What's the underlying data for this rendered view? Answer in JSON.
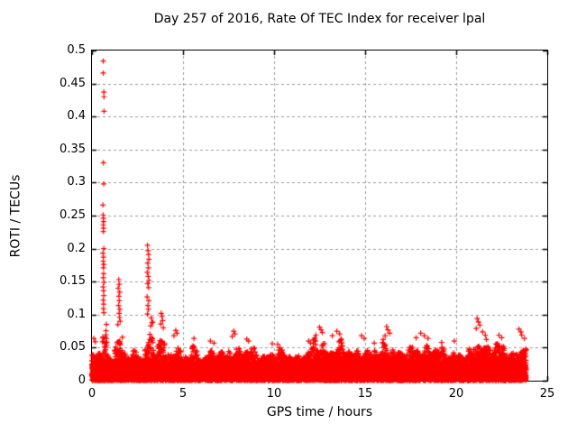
{
  "chart_data": {
    "type": "scatter",
    "title": "Day 257 of 2016, Rate Of TEC Index for receiver lpal",
    "xlabel": "GPS time / hours",
    "ylabel": "ROTI / TECUs",
    "xlim": [
      0,
      25
    ],
    "ylim": [
      0,
      0.5
    ],
    "xtick_labels": [
      "0",
      "5",
      "10",
      "15",
      "20",
      "25"
    ],
    "ytick_labels": [
      "0",
      "0.05",
      "0.1",
      "0.15",
      "0.2",
      "0.25",
      "0.3",
      "0.35",
      "0.4",
      "0.45",
      "0.5"
    ],
    "grid": true,
    "legend": "none",
    "marker": "plus",
    "marker_color": "#ff0000",
    "grid_color": "#9a9a9a",
    "axis_color": "#000000",
    "data_start_hour": 0.0,
    "data_end_hour": 23.85,
    "dense_band_segments": [
      [
        0.0,
        0.35,
        0.024,
        0.045
      ],
      [
        0.35,
        0.55,
        0.026,
        0.052
      ],
      [
        0.55,
        0.82,
        0.03,
        0.128
      ],
      [
        0.82,
        1.25,
        0.024,
        0.046
      ],
      [
        1.25,
        1.68,
        0.03,
        0.1
      ],
      [
        1.68,
        2.2,
        0.024,
        0.046
      ],
      [
        2.2,
        2.55,
        0.026,
        0.056
      ],
      [
        2.55,
        2.9,
        0.024,
        0.047
      ],
      [
        2.9,
        3.35,
        0.03,
        0.112
      ],
      [
        3.35,
        3.6,
        0.026,
        0.06
      ],
      [
        3.6,
        4.0,
        0.028,
        0.082
      ],
      [
        4.0,
        4.3,
        0.024,
        0.047
      ],
      [
        4.3,
        4.9,
        0.028,
        0.067
      ],
      [
        4.9,
        5.4,
        0.023,
        0.044
      ],
      [
        5.4,
        5.8,
        0.026,
        0.06
      ],
      [
        5.8,
        6.2,
        0.024,
        0.046
      ],
      [
        6.2,
        6.9,
        0.026,
        0.057
      ],
      [
        6.9,
        7.5,
        0.024,
        0.049
      ],
      [
        7.5,
        8.15,
        0.028,
        0.066
      ],
      [
        8.15,
        8.8,
        0.026,
        0.06
      ],
      [
        8.8,
        9.6,
        0.024,
        0.051
      ],
      [
        9.6,
        10.5,
        0.026,
        0.055
      ],
      [
        10.5,
        11.6,
        0.024,
        0.049
      ],
      [
        11.6,
        12.15,
        0.026,
        0.059
      ],
      [
        12.15,
        12.95,
        0.029,
        0.073
      ],
      [
        12.95,
        13.9,
        0.029,
        0.069
      ],
      [
        13.9,
        14.45,
        0.026,
        0.056
      ],
      [
        14.45,
        15.1,
        0.028,
        0.064
      ],
      [
        15.1,
        15.95,
        0.026,
        0.055
      ],
      [
        15.95,
        16.6,
        0.03,
        0.075
      ],
      [
        16.6,
        17.55,
        0.026,
        0.056
      ],
      [
        17.55,
        18.7,
        0.028,
        0.066
      ],
      [
        18.7,
        19.65,
        0.026,
        0.058
      ],
      [
        19.65,
        20.25,
        0.026,
        0.057
      ],
      [
        20.25,
        20.95,
        0.024,
        0.049
      ],
      [
        20.95,
        21.85,
        0.03,
        0.085
      ],
      [
        21.85,
        22.8,
        0.028,
        0.064
      ],
      [
        22.8,
        23.25,
        0.026,
        0.053
      ],
      [
        23.25,
        23.85,
        0.028,
        0.07
      ]
    ],
    "outliers": [
      [
        0.62,
        0.484
      ],
      [
        0.62,
        0.466
      ],
      [
        0.655,
        0.437
      ],
      [
        0.66,
        0.43
      ],
      [
        0.665,
        0.408
      ],
      [
        0.63,
        0.33
      ],
      [
        0.645,
        0.298
      ],
      [
        0.6,
        0.266
      ],
      [
        0.61,
        0.251
      ],
      [
        0.625,
        0.246
      ],
      [
        0.64,
        0.241
      ],
      [
        0.615,
        0.236
      ],
      [
        0.635,
        0.231
      ],
      [
        0.625,
        0.226
      ],
      [
        0.65,
        0.2
      ],
      [
        0.6,
        0.193
      ],
      [
        0.63,
        0.187
      ],
      [
        0.615,
        0.181
      ],
      [
        0.65,
        0.176
      ],
      [
        0.625,
        0.171
      ],
      [
        0.64,
        0.162
      ],
      [
        0.62,
        0.156
      ],
      [
        0.66,
        0.149
      ],
      [
        0.615,
        0.142
      ],
      [
        0.635,
        0.136
      ],
      [
        0.65,
        0.129
      ],
      [
        0.62,
        0.122
      ],
      [
        0.64,
        0.116
      ],
      [
        0.63,
        0.109
      ],
      [
        0.655,
        0.103
      ],
      [
        1.47,
        0.153
      ],
      [
        1.5,
        0.146
      ],
      [
        1.44,
        0.14
      ],
      [
        1.52,
        0.134
      ],
      [
        1.48,
        0.128
      ],
      [
        1.5,
        0.121
      ],
      [
        1.46,
        0.114
      ],
      [
        1.53,
        0.108
      ],
      [
        1.49,
        0.102
      ],
      [
        1.51,
        0.096
      ],
      [
        1.55,
        0.09
      ],
      [
        1.42,
        0.085
      ],
      [
        3.05,
        0.205
      ],
      [
        3.08,
        0.197
      ],
      [
        3.11,
        0.191
      ],
      [
        3.13,
        0.184
      ],
      [
        3.06,
        0.178
      ],
      [
        3.1,
        0.171
      ],
      [
        3.04,
        0.164
      ],
      [
        3.09,
        0.158
      ],
      [
        3.13,
        0.152
      ],
      [
        3.06,
        0.147
      ],
      [
        3.11,
        0.141
      ],
      [
        3.03,
        0.127
      ],
      [
        3.12,
        0.121
      ],
      [
        3.07,
        0.114
      ],
      [
        3.1,
        0.108
      ],
      [
        3.05,
        0.101
      ],
      [
        3.25,
        0.095
      ],
      [
        3.3,
        0.088
      ],
      [
        3.8,
        0.102
      ],
      [
        3.85,
        0.097
      ],
      [
        3.88,
        0.091
      ],
      [
        3.78,
        0.086
      ],
      [
        3.92,
        0.08
      ],
      [
        4.6,
        0.076
      ],
      [
        4.67,
        0.072
      ],
      [
        4.5,
        0.068
      ],
      [
        5.6,
        0.064
      ],
      [
        6.5,
        0.06
      ],
      [
        6.7,
        0.057
      ],
      [
        7.78,
        0.075
      ],
      [
        7.85,
        0.071
      ],
      [
        7.7,
        0.067
      ],
      [
        8.5,
        0.063
      ],
      [
        8.6,
        0.06
      ],
      [
        9.9,
        0.056
      ],
      [
        10.2,
        0.055
      ],
      [
        11.9,
        0.06
      ],
      [
        12.0,
        0.057
      ],
      [
        12.5,
        0.081
      ],
      [
        12.58,
        0.077
      ],
      [
        12.65,
        0.073
      ],
      [
        12.3,
        0.069
      ],
      [
        13.45,
        0.075
      ],
      [
        13.6,
        0.071
      ],
      [
        13.2,
        0.068
      ],
      [
        14.8,
        0.068
      ],
      [
        14.95,
        0.064
      ],
      [
        15.5,
        0.057
      ],
      [
        16.18,
        0.082
      ],
      [
        16.25,
        0.077
      ],
      [
        16.35,
        0.072
      ],
      [
        16.1,
        0.068
      ],
      [
        17.8,
        0.065
      ],
      [
        18.05,
        0.072
      ],
      [
        18.25,
        0.068
      ],
      [
        18.45,
        0.064
      ],
      [
        19.2,
        0.058
      ],
      [
        19.9,
        0.06
      ],
      [
        21.15,
        0.094
      ],
      [
        21.22,
        0.089
      ],
      [
        21.3,
        0.084
      ],
      [
        21.1,
        0.079
      ],
      [
        21.45,
        0.074
      ],
      [
        21.6,
        0.069
      ],
      [
        22.35,
        0.069
      ],
      [
        22.5,
        0.065
      ],
      [
        23.45,
        0.078
      ],
      [
        23.55,
        0.074
      ],
      [
        23.6,
        0.069
      ],
      [
        23.75,
        0.064
      ],
      [
        0.1,
        0.064
      ],
      [
        0.18,
        0.059
      ]
    ]
  }
}
